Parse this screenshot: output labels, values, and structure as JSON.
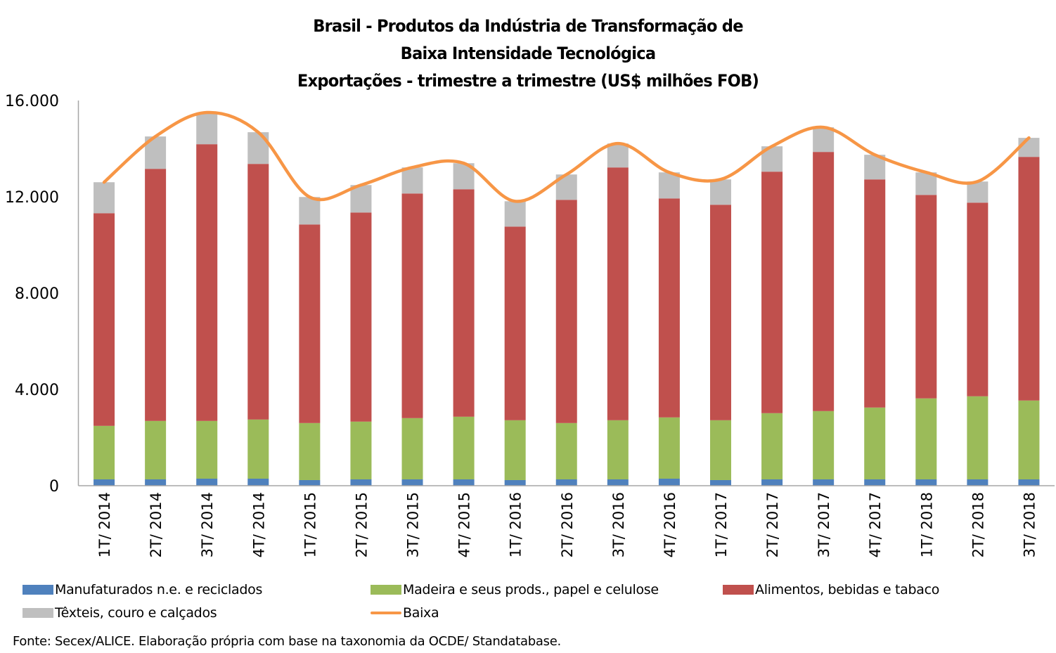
{
  "chart_data": {
    "type": "bar",
    "stacked": true,
    "title": [
      "Brasil - Produtos da Indústria de Transformação de",
      "Baixa Intensidade Tecnológica",
      "Exportações - trimestre a trimestre (US$ milhões FOB)"
    ],
    "xlabel": "",
    "ylabel": "",
    "ylim": [
      0,
      16000
    ],
    "yticks": [
      0,
      4000,
      8000,
      12000,
      16000
    ],
    "ytick_labels": [
      "0",
      "4.000",
      "8.000",
      "12.000",
      "16.000"
    ],
    "grid": false,
    "legend_position": "bottom",
    "categories": [
      "1T/ 2014",
      "2T/ 2014",
      "3T/ 2014",
      "4T/ 2014",
      "1T/ 2015",
      "2T/ 2015",
      "3T/ 2015",
      "4T/ 2015",
      "1T/ 2016",
      "2T/ 2016",
      "3T/ 2016",
      "4T/ 2016",
      "1T/ 2017",
      "2T/ 2017",
      "3T/ 2017",
      "4T/ 2017",
      "1T/ 2018",
      "2T/ 2018",
      "3T/ 2018"
    ],
    "series": [
      {
        "name": "Manufaturados n.e. e reciclados",
        "kind": "bar",
        "color": "#4f81bd",
        "values": [
          263,
          263,
          292,
          292,
          234,
          263,
          263,
          263,
          234,
          263,
          263,
          292,
          234,
          263,
          263,
          263,
          263,
          263,
          263
        ]
      },
      {
        "name": "Madeira e seus prods., papel e celulose",
        "kind": "bar",
        "color": "#9bbb59",
        "values": [
          2223,
          2428,
          2399,
          2457,
          2369,
          2399,
          2545,
          2603,
          2486,
          2340,
          2457,
          2545,
          2486,
          2750,
          2837,
          2984,
          3364,
          3451,
          3276
        ]
      },
      {
        "name": "Alimentos, bebidas e tabaco",
        "kind": "bar",
        "color": "#c0504d",
        "values": [
          8833,
          10471,
          11494,
          10618,
          8248,
          8686,
          9330,
          9448,
          8043,
          9272,
          10500,
          9096,
          8950,
          10032,
          10764,
          9476,
          8452,
          8044,
          10120
        ]
      },
      {
        "name": "Têxteis, couro e calçados",
        "kind": "bar",
        "color": "#bfbfbf",
        "values": [
          1287,
          1345,
          1317,
          1316,
          1141,
          1141,
          1082,
          1082,
          1053,
          1053,
          995,
          1082,
          1053,
          1053,
          1024,
          1024,
          936,
          877,
          790
        ]
      },
      {
        "name": "Baixa",
        "kind": "line",
        "smooth": true,
        "color": "#f79646",
        "values": [
          12606,
          14507,
          15502,
          14683,
          11992,
          12489,
          13220,
          13396,
          11816,
          12928,
          14215,
          13015,
          12723,
          14098,
          14888,
          13747,
          13015,
          12635,
          14449
        ]
      }
    ]
  },
  "legend": {
    "items": [
      {
        "label": "Manufaturados n.e. e reciclados",
        "type": "box"
      },
      {
        "label": "Madeira e seus prods., papel e celulose",
        "type": "box"
      },
      {
        "label": "Alimentos, bebidas e tabaco",
        "type": "box"
      },
      {
        "label": "Têxteis, couro e calçados",
        "type": "box"
      },
      {
        "label": "Baixa",
        "type": "line"
      }
    ]
  },
  "source": "Fonte: Secex/ALICE. Elaboração própria com base na taxonomia da OCDE/ Standatabase."
}
